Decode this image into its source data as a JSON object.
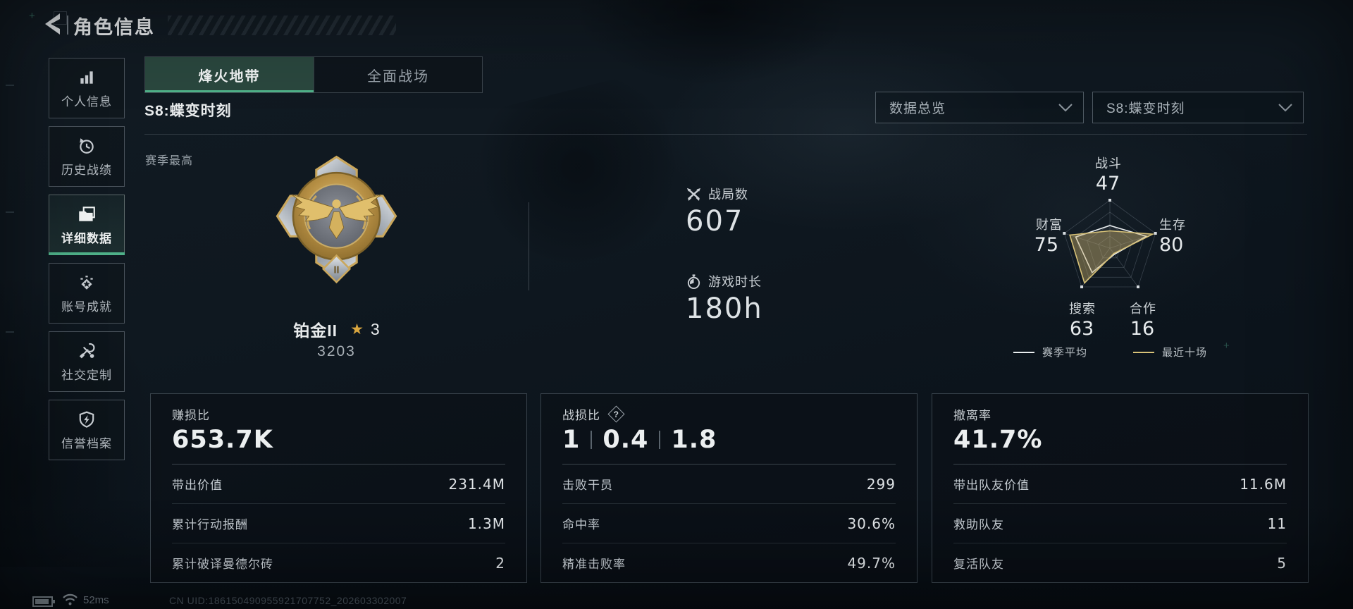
{
  "header": {
    "title": "角色信息"
  },
  "sidebar": {
    "items": [
      {
        "label": "个人信息"
      },
      {
        "label": "历史战绩"
      },
      {
        "label": "详细数据"
      },
      {
        "label": "账号成就"
      },
      {
        "label": "社交定制"
      },
      {
        "label": "信誉档案"
      }
    ]
  },
  "tabs": [
    {
      "label": "烽火地带"
    },
    {
      "label": "全面战场"
    }
  ],
  "season_title": "S8:蝶变时刻",
  "filters": {
    "overview": "数据总览",
    "season": "S8:蝶变时刻"
  },
  "season_best": {
    "label": "赛季最高",
    "rank_name": "铂金II",
    "rank_tier_numeral": "II",
    "star_count": "3",
    "rank_score": "3203",
    "stats": [
      {
        "icon": "crossed-swords-icon",
        "label": "战局数",
        "value": "607"
      },
      {
        "icon": "stopwatch-icon",
        "label": "游戏时长",
        "value": "180h"
      }
    ]
  },
  "chart_data": {
    "type": "radar",
    "title": "",
    "categories": [
      "战斗",
      "生存",
      "合作",
      "搜索",
      "财富"
    ],
    "values": [
      47,
      80,
      16,
      63,
      75
    ],
    "max": 100,
    "grid_levels": 4,
    "grid_on": true,
    "legend_position": "bottom",
    "series": [
      {
        "name": "赛季平均",
        "color": "#e9edef",
        "fill": "rgba(255,255,255,0.05)",
        "values": [
          47,
          80,
          16,
          63,
          75
        ]
      },
      {
        "name": "最近十场",
        "color": "#d8c278",
        "fill": "rgba(201,175,105,0.42)",
        "values": [
          36,
          94,
          14,
          90,
          88
        ]
      }
    ]
  },
  "cards": [
    {
      "title": "赚损比",
      "value": "653.7K",
      "rows": [
        [
          "带出价值",
          "231.4M"
        ],
        [
          "累计行动报酬",
          "1.3M"
        ],
        [
          "累计破译曼德尔砖",
          "2"
        ]
      ]
    },
    {
      "title": "战损比",
      "value_parts": [
        "1",
        "0.4",
        "1.8"
      ],
      "rows": [
        [
          "击败干员",
          "299"
        ],
        [
          "命中率",
          "30.6%"
        ],
        [
          "精准击败率",
          "49.7%"
        ]
      ]
    },
    {
      "title": "撤离率",
      "value": "41.7%",
      "rows": [
        [
          "带出队友价值",
          "11.6M"
        ],
        [
          "救助队友",
          "11"
        ],
        [
          "复活队友",
          "5"
        ]
      ]
    }
  ],
  "status_bar": {
    "ping": "52ms",
    "uid": "CN UID:186150490955921707752_202603302007"
  }
}
